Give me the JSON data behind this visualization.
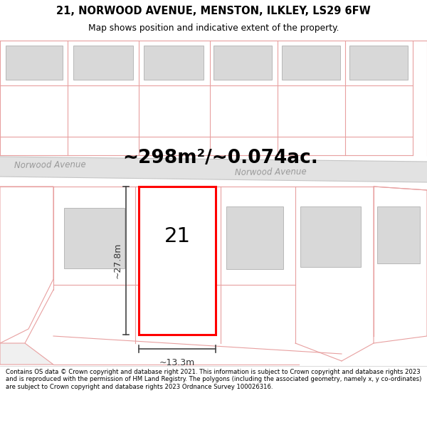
{
  "title_line1": "21, NORWOOD AVENUE, MENSTON, ILKLEY, LS29 6FW",
  "title_line2": "Map shows position and indicative extent of the property.",
  "footer_text": "Contains OS data © Crown copyright and database right 2021. This information is subject to Crown copyright and database rights 2023 and is reproduced with the permission of HM Land Registry. The polygons (including the associated geometry, namely x, y co-ordinates) are subject to Crown copyright and database rights 2023 Ordnance Survey 100026316.",
  "area_text": "~298m²/~0.074ac.",
  "street_name": "Norwood Avenue",
  "street_name2": "Norwood Avenue",
  "house_number": "21",
  "dim_width": "~13.3m",
  "dim_height": "~27.8m",
  "map_bg": "#ffffff",
  "plot_color": "#ff0000",
  "building_color": "#d8d8d8",
  "building_edge": "#b8b8b8",
  "pink_line_color": "#e8a0a0",
  "road_fill": "#e0e0e0",
  "road_edge": "#c8c8c8",
  "title_bg": "#ffffff",
  "footer_bg": "#ffffff"
}
